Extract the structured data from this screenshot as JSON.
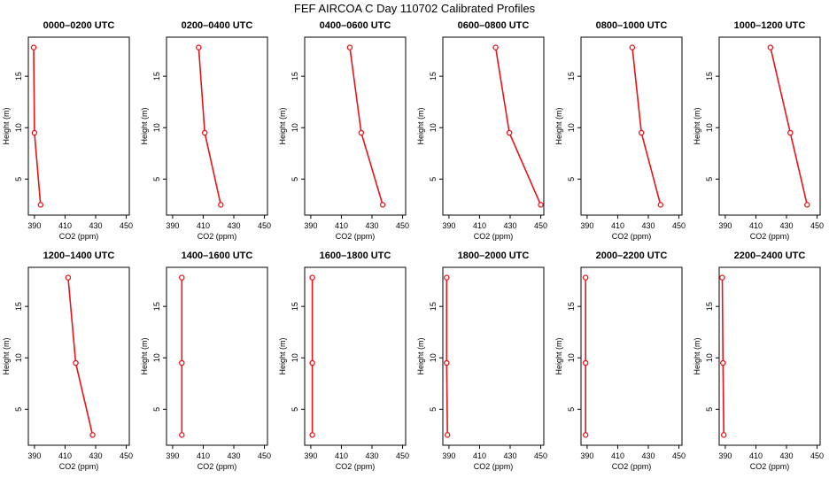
{
  "figure_title": "FEF AIRCOA C  Day 110702  Calibrated Profiles",
  "colors": {
    "series": "#e8141a",
    "axis": "#000000",
    "background": "#ffffff"
  },
  "chart_data": [
    {
      "type": "line",
      "title": "0000–0200 UTC",
      "xlabel": "CO2 (ppm)",
      "ylabel": "Height (m)",
      "xlim": [
        386,
        452
      ],
      "ylim": [
        1.5,
        18.8
      ],
      "xticks": [
        "390",
        "410",
        "430",
        "450"
      ],
      "yticks": [
        "5",
        "10",
        "15"
      ],
      "points": [
        {
          "x": 389.5,
          "y": 17.8
        },
        {
          "x": 390.0,
          "y": 9.5
        },
        {
          "x": 394.0,
          "y": 2.5
        }
      ]
    },
    {
      "type": "line",
      "title": "0200–0400 UTC",
      "xlabel": "CO2 (ppm)",
      "ylabel": "Height (m)",
      "xlim": [
        386,
        452
      ],
      "ylim": [
        1.5,
        18.8
      ],
      "xticks": [
        "390",
        "410",
        "430",
        "450"
      ],
      "yticks": [
        "5",
        "10",
        "15"
      ],
      "points": [
        {
          "x": 407.0,
          "y": 17.8
        },
        {
          "x": 411.0,
          "y": 9.5
        },
        {
          "x": 421.5,
          "y": 2.5
        }
      ]
    },
    {
      "type": "line",
      "title": "0400–0600 UTC",
      "xlabel": "CO2 (ppm)",
      "ylabel": "Height (m)",
      "xlim": [
        386,
        452
      ],
      "ylim": [
        1.5,
        18.8
      ],
      "xticks": [
        "390",
        "410",
        "430",
        "450"
      ],
      "yticks": [
        "5",
        "10",
        "15"
      ],
      "points": [
        {
          "x": 415.5,
          "y": 17.8
        },
        {
          "x": 423.0,
          "y": 9.5
        },
        {
          "x": 437.0,
          "y": 2.5
        }
      ]
    },
    {
      "type": "line",
      "title": "0600–0800 UTC",
      "xlabel": "CO2 (ppm)",
      "ylabel": "Height (m)",
      "xlim": [
        386,
        452
      ],
      "ylim": [
        1.5,
        18.8
      ],
      "xticks": [
        "390",
        "410",
        "430",
        "450"
      ],
      "yticks": [
        "5",
        "10",
        "15"
      ],
      "points": [
        {
          "x": 420.5,
          "y": 17.8
        },
        {
          "x": 429.5,
          "y": 9.5
        },
        {
          "x": 450.0,
          "y": 2.5
        }
      ]
    },
    {
      "type": "line",
      "title": "0800–1000 UTC",
      "xlabel": "CO2 (ppm)",
      "ylabel": "Height (m)",
      "xlim": [
        386,
        452
      ],
      "ylim": [
        1.5,
        18.8
      ],
      "xticks": [
        "390",
        "410",
        "430",
        "450"
      ],
      "yticks": [
        "5",
        "10",
        "15"
      ],
      "points": [
        {
          "x": 419.5,
          "y": 17.8
        },
        {
          "x": 425.5,
          "y": 9.5
        },
        {
          "x": 438.0,
          "y": 2.5
        }
      ]
    },
    {
      "type": "line",
      "title": "1000–1200 UTC",
      "xlabel": "CO2 (ppm)",
      "ylabel": "Height (m)",
      "xlim": [
        386,
        452
      ],
      "ylim": [
        1.5,
        18.8
      ],
      "xticks": [
        "390",
        "410",
        "430",
        "450"
      ],
      "yticks": [
        "5",
        "10",
        "15"
      ],
      "points": [
        {
          "x": 419.5,
          "y": 17.8
        },
        {
          "x": 432.5,
          "y": 9.5
        },
        {
          "x": 443.5,
          "y": 2.5
        }
      ]
    },
    {
      "type": "line",
      "title": "1200–1400 UTC",
      "xlabel": "CO2 (ppm)",
      "ylabel": "Height (m)",
      "xlim": [
        386,
        452
      ],
      "ylim": [
        1.5,
        18.8
      ],
      "xticks": [
        "390",
        "410",
        "430",
        "450"
      ],
      "yticks": [
        "5",
        "10",
        "15"
      ],
      "points": [
        {
          "x": 412.0,
          "y": 17.8
        },
        {
          "x": 417.0,
          "y": 9.5
        },
        {
          "x": 428.0,
          "y": 2.5
        }
      ]
    },
    {
      "type": "line",
      "title": "1400–1600 UTC",
      "xlabel": "CO2 (ppm)",
      "ylabel": "Height (m)",
      "xlim": [
        386,
        452
      ],
      "ylim": [
        1.5,
        18.8
      ],
      "xticks": [
        "390",
        "410",
        "430",
        "450"
      ],
      "yticks": [
        "5",
        "10",
        "15"
      ],
      "points": [
        {
          "x": 396.0,
          "y": 17.8
        },
        {
          "x": 396.0,
          "y": 9.5
        },
        {
          "x": 396.0,
          "y": 2.5
        }
      ]
    },
    {
      "type": "line",
      "title": "1600–1800 UTC",
      "xlabel": "CO2 (ppm)",
      "ylabel": "Height (m)",
      "xlim": [
        386,
        452
      ],
      "ylim": [
        1.5,
        18.8
      ],
      "xticks": [
        "390",
        "410",
        "430",
        "450"
      ],
      "yticks": [
        "5",
        "10",
        "15"
      ],
      "points": [
        {
          "x": 391.0,
          "y": 17.8
        },
        {
          "x": 391.0,
          "y": 9.5
        },
        {
          "x": 391.0,
          "y": 2.5
        }
      ]
    },
    {
      "type": "line",
      "title": "1800–2000 UTC",
      "xlabel": "CO2 (ppm)",
      "ylabel": "Height (m)",
      "xlim": [
        386,
        452
      ],
      "ylim": [
        1.5,
        18.8
      ],
      "xticks": [
        "390",
        "410",
        "430",
        "450"
      ],
      "yticks": [
        "5",
        "10",
        "15"
      ],
      "points": [
        {
          "x": 388.5,
          "y": 17.8
        },
        {
          "x": 388.5,
          "y": 9.5
        },
        {
          "x": 389.0,
          "y": 2.5
        }
      ]
    },
    {
      "type": "line",
      "title": "2000–2200 UTC",
      "xlabel": "CO2 (ppm)",
      "ylabel": "Height (m)",
      "xlim": [
        386,
        452
      ],
      "ylim": [
        1.5,
        18.8
      ],
      "xticks": [
        "390",
        "410",
        "430",
        "450"
      ],
      "yticks": [
        "5",
        "10",
        "15"
      ],
      "points": [
        {
          "x": 389.0,
          "y": 17.8
        },
        {
          "x": 389.0,
          "y": 9.5
        },
        {
          "x": 389.0,
          "y": 2.5
        }
      ]
    },
    {
      "type": "line",
      "title": "2200–2400 UTC",
      "xlabel": "CO2 (ppm)",
      "ylabel": "Height (m)",
      "xlim": [
        386,
        452
      ],
      "ylim": [
        1.5,
        18.8
      ],
      "xticks": [
        "390",
        "410",
        "430",
        "450"
      ],
      "yticks": [
        "5",
        "10",
        "15"
      ],
      "points": [
        {
          "x": 388.0,
          "y": 17.8
        },
        {
          "x": 388.5,
          "y": 9.5
        },
        {
          "x": 389.0,
          "y": 2.5
        }
      ]
    }
  ]
}
